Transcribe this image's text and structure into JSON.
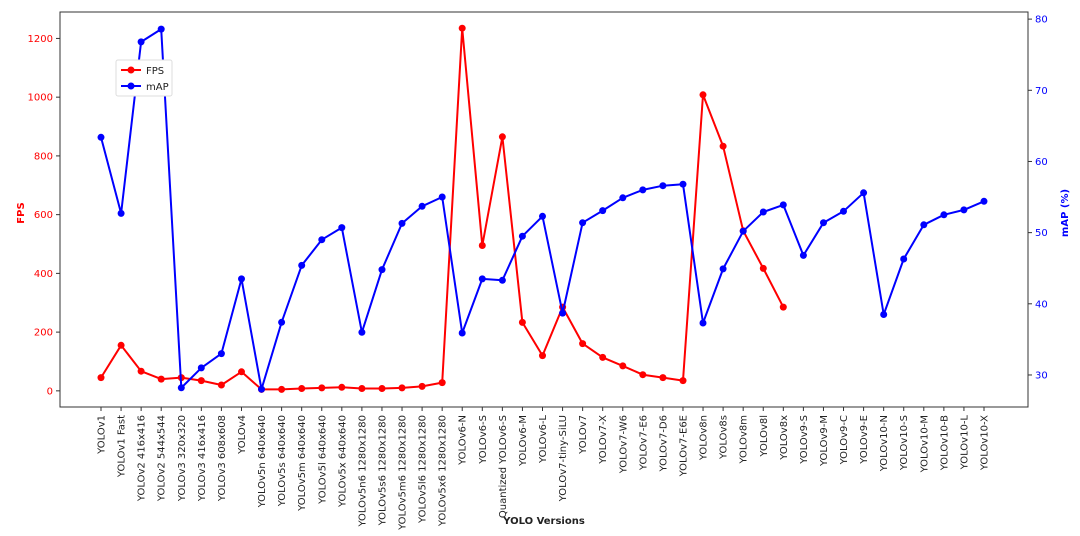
{
  "chart_data": {
    "type": "line",
    "xlabel": "YOLO Versions",
    "categories": [
      "YOLOv1",
      "YOLOv1 Fast",
      "YOLOv2 416x416",
      "YOLOv2 544x544",
      "YOLOv3 320x320",
      "YOLOv3 416x416",
      "YOLOv3 608x608",
      "YOLOv4",
      "YOLOv5n 640x640",
      "YOLOv5s 640x640",
      "YOLOv5m 640x640",
      "YOLOv5l 640x640",
      "YOLOv5x 640x640",
      "YOLOv5n6 1280x1280",
      "YOLOv5s6 1280x1280",
      "YOLOv5m6 1280x1280",
      "YOLOv5l6 1280x1280",
      "YOLOv5x6 1280x1280",
      "YOLOv6-N",
      "YOLOv6-S",
      "Quantized YOLOv6-S",
      "YOLOv6-M",
      "YOLOv6-L",
      "YOLOv7-tiny-SiLU",
      "YOLOv7",
      "YOLOv7-X",
      "YOLOv7-W6",
      "YOLOv7-E6",
      "YOLOv7-D6",
      "YOLOv7-E6E",
      "YOLOv8n",
      "YOLOv8s",
      "YOLOv8m",
      "YOLOv8l",
      "YOLOv8x",
      "YOLOv9-S",
      "YOLOv9-M",
      "YOLOv9-C",
      "YOLOv9-E",
      "YOLOv10-N",
      "YOLOv10-S",
      "YOLOv10-M",
      "YOLOv10-B",
      "YOLOv10-L",
      "YOLOv10-X"
    ],
    "series": [
      {
        "name": "FPS",
        "axis": "left",
        "color": "#ff0000",
        "values": [
          45,
          155,
          67,
          40,
          45,
          35,
          20,
          65,
          5,
          5,
          8,
          10,
          12,
          8,
          8,
          10,
          15,
          28,
          1235,
          495,
          865,
          233,
          120,
          285,
          161,
          114,
          85,
          55,
          45,
          35,
          1008,
          833,
          545,
          417,
          285,
          null,
          null,
          null,
          null,
          null,
          null,
          null,
          null,
          null,
          null
        ]
      },
      {
        "name": "mAP",
        "axis": "right",
        "color": "#0000ff",
        "values": [
          63.4,
          52.7,
          76.8,
          78.6,
          28.2,
          31.0,
          33.0,
          43.5,
          28.0,
          37.4,
          45.4,
          49.0,
          50.7,
          36.0,
          44.8,
          51.3,
          53.7,
          55.0,
          35.9,
          43.5,
          43.3,
          49.5,
          52.3,
          38.7,
          51.4,
          53.1,
          54.9,
          56.0,
          56.6,
          56.8,
          37.3,
          44.9,
          50.2,
          52.9,
          53.9,
          46.8,
          51.4,
          53.0,
          55.6,
          38.5,
          46.3,
          51.1,
          52.5,
          53.2,
          54.4
        ]
      }
    ],
    "y_left": {
      "label": "FPS",
      "ylim": [
        -55,
        1290
      ],
      "ticks": [
        0,
        200,
        400,
        600,
        800,
        1000,
        1200
      ],
      "color": "#ff0000"
    },
    "y_right": {
      "label": "mAP (%)",
      "ylim": [
        25.5,
        81.0
      ],
      "ticks": [
        30,
        40,
        50,
        60,
        70,
        80
      ],
      "color": "#0000ff"
    },
    "legend": {
      "placement": "upper-left",
      "entries": [
        "FPS",
        "mAP"
      ]
    },
    "grid": false
  }
}
